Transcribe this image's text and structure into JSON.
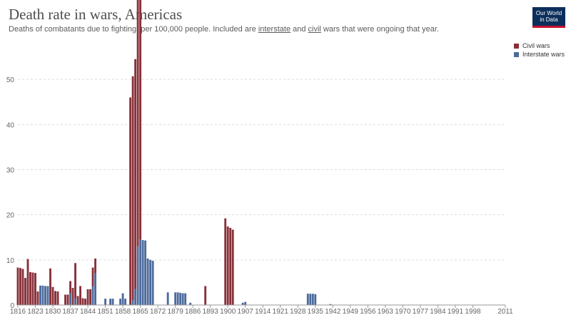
{
  "title": "Death rate in wars, Americas",
  "subtitle": {
    "part1": "Deaths of combatants due to fighting, per 100,000 people. Included are ",
    "link1": "interstate",
    "part2": " and ",
    "link2": "civil",
    "part3": " wars that were ongoing that year."
  },
  "logo": {
    "line1": "Our World",
    "line2": "in Data"
  },
  "colors": {
    "civil": "#883039",
    "interstate": "#4c6a9c",
    "grid": "#dddddd",
    "axis": "#999999"
  },
  "chart_data": {
    "type": "bar",
    "stacked": true,
    "xlim": [
      1816,
      2011
    ],
    "ylim": [
      0,
      60
    ],
    "y_ticks": [
      0,
      10,
      20,
      30,
      40,
      50
    ],
    "x_ticks": [
      1816,
      1823,
      1830,
      1837,
      1844,
      1851,
      1858,
      1865,
      1872,
      1879,
      1886,
      1893,
      1900,
      1907,
      1914,
      1921,
      1928,
      1935,
      1942,
      1949,
      1956,
      1963,
      1970,
      1977,
      1984,
      1991,
      1998,
      2011
    ],
    "legend_position": "top-right",
    "grid": true,
    "series": [
      {
        "name": "Civil wars",
        "key": "civil",
        "points": [
          [
            1816,
            8.3
          ],
          [
            1817,
            8.2
          ],
          [
            1818,
            8.0
          ],
          [
            1819,
            6.0
          ],
          [
            1820,
            10.2
          ],
          [
            1821,
            7.3
          ],
          [
            1822,
            7.2
          ],
          [
            1823,
            7.1
          ],
          [
            1824,
            3.0
          ],
          [
            1829,
            8.1
          ],
          [
            1830,
            4.0
          ],
          [
            1831,
            3.1
          ],
          [
            1832,
            3.0
          ],
          [
            1835,
            2.3
          ],
          [
            1836,
            2.3
          ],
          [
            1837,
            2.7
          ],
          [
            1838,
            3.8
          ],
          [
            1839,
            7.8
          ],
          [
            1840,
            2.0
          ],
          [
            1841,
            4.2
          ],
          [
            1842,
            1.5
          ],
          [
            1843,
            1.4
          ],
          [
            1844,
            3.5
          ],
          [
            1845,
            3.5
          ],
          [
            1846,
            4.2
          ],
          [
            1847,
            3.3
          ],
          [
            1861,
            46.0
          ],
          [
            1862,
            49.7
          ],
          [
            1863,
            51.0
          ],
          [
            1864,
            57.2
          ],
          [
            1865,
            57.8
          ],
          [
            1891,
            4.2
          ],
          [
            1899,
            19.2
          ],
          [
            1900,
            17.4
          ],
          [
            1901,
            17.1
          ],
          [
            1902,
            16.7
          ]
        ]
      },
      {
        "name": "Interstate wars",
        "key": "interstate",
        "points": [
          [
            1825,
            4.3
          ],
          [
            1826,
            4.3
          ],
          [
            1827,
            4.2
          ],
          [
            1828,
            4.2
          ],
          [
            1837,
            2.6
          ],
          [
            1839,
            1.5
          ],
          [
            1846,
            4.1
          ],
          [
            1847,
            7.0
          ],
          [
            1851,
            1.4
          ],
          [
            1853,
            1.4
          ],
          [
            1854,
            1.4
          ],
          [
            1857,
            1.4
          ],
          [
            1858,
            2.6
          ],
          [
            1859,
            1.4
          ],
          [
            1862,
            1.0
          ],
          [
            1863,
            3.5
          ],
          [
            1864,
            13.0
          ],
          [
            1865,
            14.5
          ],
          [
            1866,
            14.4
          ],
          [
            1867,
            14.3
          ],
          [
            1868,
            10.3
          ],
          [
            1869,
            10.0
          ],
          [
            1870,
            9.8
          ],
          [
            1876,
            2.8
          ],
          [
            1879,
            2.8
          ],
          [
            1880,
            2.8
          ],
          [
            1881,
            2.7
          ],
          [
            1882,
            2.6
          ],
          [
            1883,
            2.6
          ],
          [
            1885,
            0.5
          ],
          [
            1906,
            0.5
          ],
          [
            1907,
            0.7
          ],
          [
            1932,
            2.5
          ],
          [
            1933,
            2.5
          ],
          [
            1934,
            2.5
          ],
          [
            1935,
            2.4
          ],
          [
            1941,
            0.2
          ]
        ]
      }
    ]
  }
}
